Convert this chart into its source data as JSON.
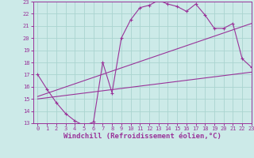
{
  "background_color": "#cceae8",
  "grid_color": "#aad4d0",
  "line_color": "#993399",
  "xlim": [
    -0.5,
    23
  ],
  "ylim": [
    13,
    23
  ],
  "xlabel": "Windchill (Refroidissement éolien,°C)",
  "xlabel_fontsize": 6.5,
  "xticks": [
    0,
    1,
    2,
    3,
    4,
    5,
    6,
    7,
    8,
    9,
    10,
    11,
    12,
    13,
    14,
    15,
    16,
    17,
    18,
    19,
    20,
    21,
    22,
    23
  ],
  "yticks": [
    13,
    14,
    15,
    16,
    17,
    18,
    19,
    20,
    21,
    22,
    23
  ],
  "line1_x": [
    0,
    1,
    2,
    3,
    4,
    5,
    6,
    7,
    8,
    9,
    10,
    11,
    12,
    13,
    14,
    15,
    16,
    17,
    18,
    19,
    20,
    21,
    22,
    23
  ],
  "line1_y": [
    17.0,
    15.8,
    14.7,
    13.8,
    13.2,
    12.8,
    13.1,
    18.0,
    15.5,
    20.0,
    21.5,
    22.5,
    22.7,
    23.1,
    22.8,
    22.6,
    22.2,
    22.8,
    21.9,
    20.8,
    20.8,
    21.2,
    18.3,
    17.6
  ],
  "line2_x": [
    0,
    23
  ],
  "line2_y": [
    15.0,
    17.2
  ],
  "line3_x": [
    0,
    23
  ],
  "line3_y": [
    15.2,
    21.2
  ]
}
